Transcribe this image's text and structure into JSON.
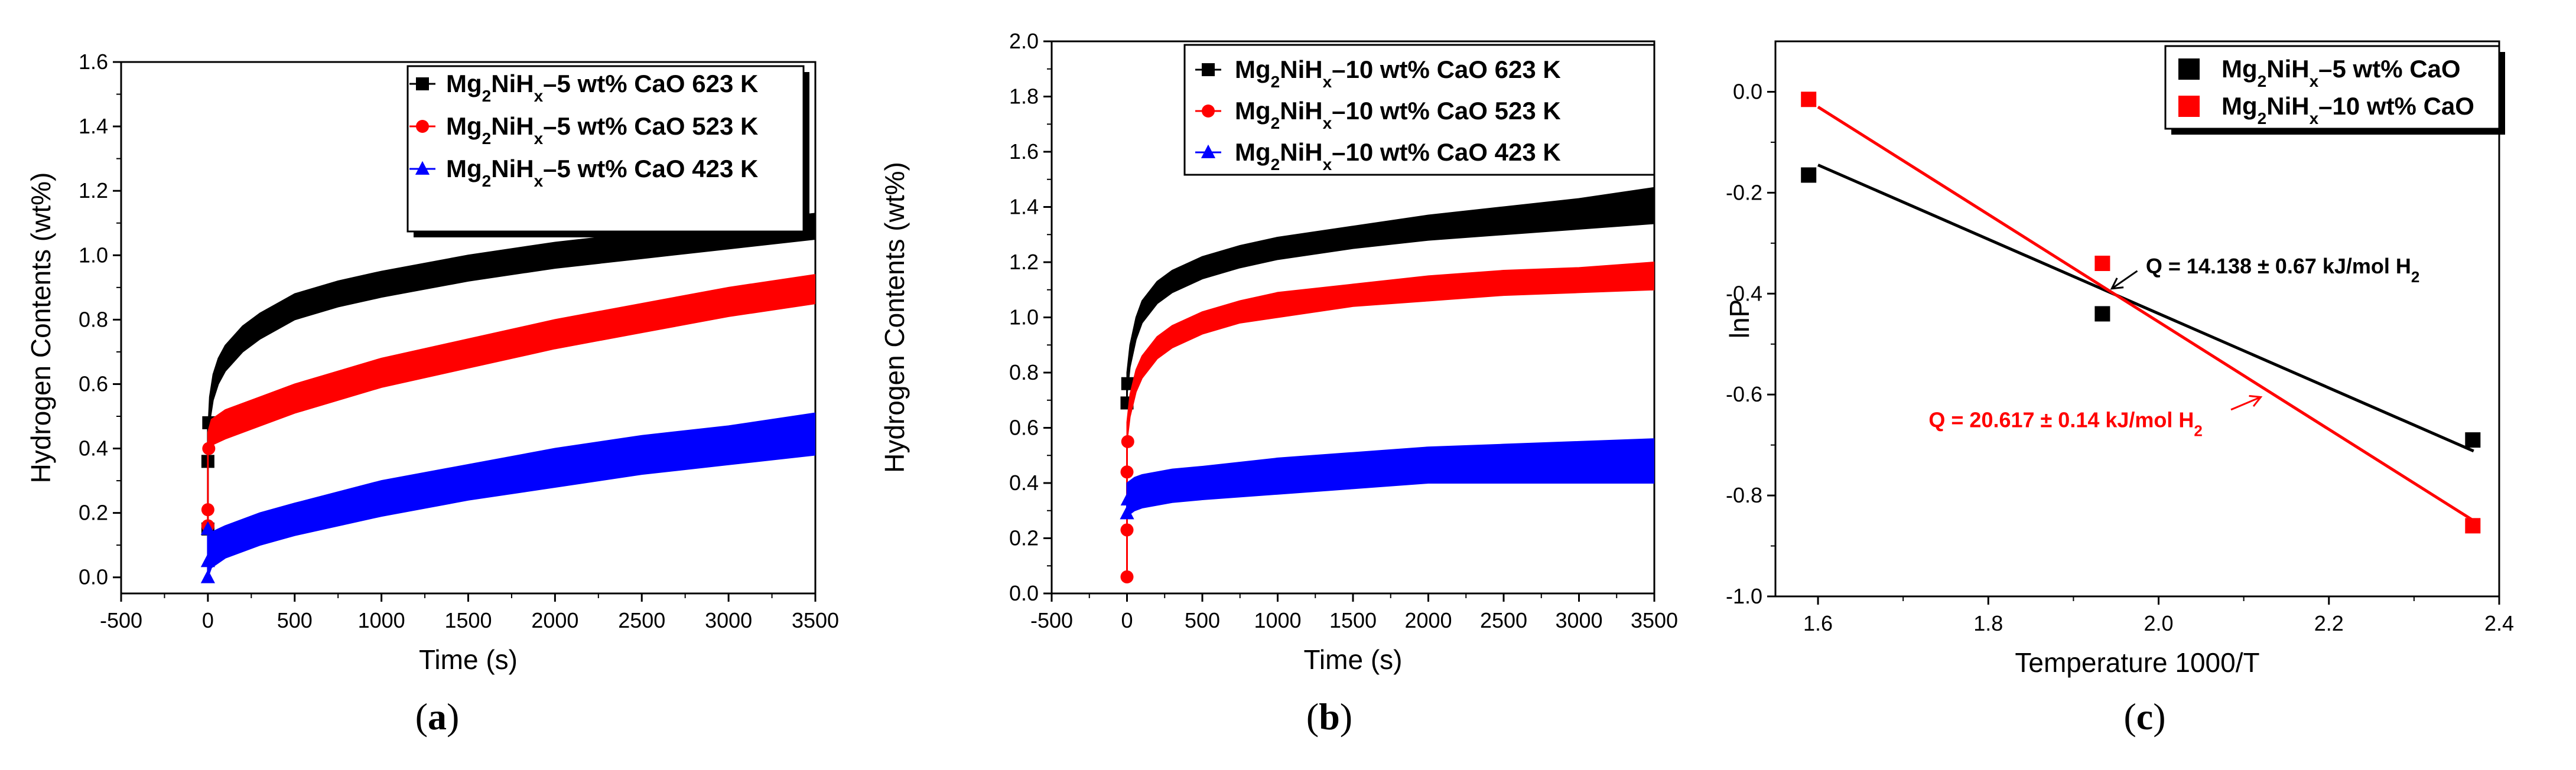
{
  "chart_data": [
    {
      "type": "scatter",
      "panel_label": "a",
      "xlabel": "Time (s)",
      "ylabel": "Hydrogen Contents (wt%)",
      "xlim": [
        -500,
        3500
      ],
      "ylim": [
        -0.05,
        1.6
      ],
      "xticks": [
        -500,
        0,
        500,
        1000,
        1500,
        2000,
        2500,
        3000,
        3500
      ],
      "yticks": [
        0.0,
        0.2,
        0.4,
        0.6,
        0.8,
        1.0,
        1.2,
        1.4,
        1.6
      ],
      "tick_decimals": 1,
      "legend_position": "top-right",
      "series": [
        {
          "name": "Mg2NiHx–5 wt% CaO 623 K",
          "label_pre": "Mg",
          "label_sub1": "2",
          "label_mid": "NiH",
          "label_sub2": "x",
          "label_post": "–5 wt% CaO 623 K",
          "color": "#000000",
          "marker": "square",
          "start_points": [
            [
              0,
              0.15
            ],
            [
              0,
              0.36
            ],
            [
              5,
              0.48
            ]
          ],
          "band_x": [
            0,
            10,
            30,
            60,
            100,
            200,
            300,
            500,
            750,
            1000,
            1500,
            2000,
            2500,
            3000,
            3500
          ],
          "band_low": [
            0.38,
            0.48,
            0.55,
            0.6,
            0.64,
            0.7,
            0.74,
            0.8,
            0.84,
            0.87,
            0.92,
            0.96,
            0.99,
            1.02,
            1.05
          ],
          "band_high": [
            0.45,
            0.56,
            0.63,
            0.68,
            0.72,
            0.78,
            0.82,
            0.88,
            0.92,
            0.95,
            1.0,
            1.04,
            1.07,
            1.1,
            1.13
          ]
        },
        {
          "name": "Mg2NiHx–5 wt% CaO 523 K",
          "label_pre": "Mg",
          "label_sub1": "2",
          "label_mid": "NiH",
          "label_sub2": "x",
          "label_post": "–5 wt% CaO 523 K",
          "color": "#ff0000",
          "marker": "circle",
          "start_points": [
            [
              0,
              0.16
            ],
            [
              0,
              0.21
            ],
            [
              5,
              0.4
            ]
          ],
          "band_x": [
            0,
            20,
            100,
            300,
            500,
            1000,
            1500,
            2000,
            2500,
            3000,
            3500
          ],
          "band_low": [
            0.38,
            0.41,
            0.43,
            0.47,
            0.51,
            0.59,
            0.65,
            0.71,
            0.76,
            0.81,
            0.85
          ],
          "band_high": [
            0.45,
            0.49,
            0.52,
            0.56,
            0.6,
            0.68,
            0.74,
            0.8,
            0.85,
            0.9,
            0.94
          ]
        },
        {
          "name": "Mg2NiHx–5 wt% CaO 423 K",
          "label_pre": "Mg",
          "label_sub1": "2",
          "label_mid": "NiH",
          "label_sub2": "x",
          "label_post": "–5 wt% CaO 423 K",
          "color": "#0000ff",
          "marker": "triangle",
          "start_points": [
            [
              0,
              0.0
            ],
            [
              0,
              0.05
            ],
            [
              0,
              0.15
            ]
          ],
          "band_x": [
            0,
            20,
            100,
            300,
            500,
            1000,
            1500,
            2000,
            2500,
            3000,
            3500
          ],
          "band_low": [
            0.0,
            0.03,
            0.06,
            0.1,
            0.13,
            0.19,
            0.24,
            0.28,
            0.32,
            0.35,
            0.38
          ],
          "band_high": [
            0.12,
            0.14,
            0.16,
            0.2,
            0.23,
            0.3,
            0.35,
            0.4,
            0.44,
            0.47,
            0.51
          ]
        }
      ]
    },
    {
      "type": "scatter",
      "panel_label": "b",
      "xlabel": "Time (s)",
      "ylabel": "Hydrogen Contents (wt%)",
      "xlim": [
        -500,
        3500
      ],
      "ylim": [
        0.0,
        2.0
      ],
      "xticks": [
        -500,
        0,
        500,
        1000,
        1500,
        2000,
        2500,
        3000,
        3500
      ],
      "yticks": [
        0.0,
        0.2,
        0.4,
        0.6,
        0.8,
        1.0,
        1.2,
        1.4,
        1.6,
        1.8,
        2.0
      ],
      "tick_decimals": 1,
      "legend_position": "top-right",
      "series": [
        {
          "name": "Mg2NiHx–10 wt% CaO 623 K",
          "label_pre": "Mg",
          "label_sub1": "2",
          "label_mid": "NiH",
          "label_sub2": "x",
          "label_post": "–10 wt% CaO 623 K",
          "color": "#000000",
          "marker": "square",
          "start_points": [
            [
              0,
              0.69
            ],
            [
              5,
              0.76
            ]
          ],
          "band_x": [
            0,
            20,
            60,
            100,
            200,
            300,
            500,
            750,
            1000,
            1500,
            2000,
            2500,
            3000,
            3500
          ],
          "band_low": [
            0.72,
            0.82,
            0.92,
            0.98,
            1.05,
            1.09,
            1.14,
            1.18,
            1.21,
            1.25,
            1.28,
            1.3,
            1.32,
            1.34
          ],
          "band_high": [
            0.8,
            0.9,
            1.0,
            1.06,
            1.13,
            1.17,
            1.22,
            1.26,
            1.29,
            1.33,
            1.37,
            1.4,
            1.43,
            1.47
          ]
        },
        {
          "name": "Mg2NiHx–10 wt% CaO 523 K",
          "label_pre": "Mg",
          "label_sub1": "2",
          "label_mid": "NiH",
          "label_sub2": "x",
          "label_post": "–10 wt% CaO 523 K",
          "color": "#ff0000",
          "marker": "circle",
          "start_points": [
            [
              0,
              0.06
            ],
            [
              0,
              0.23
            ],
            [
              0,
              0.44
            ],
            [
              5,
              0.55
            ]
          ],
          "band_x": [
            0,
            20,
            60,
            100,
            200,
            300,
            500,
            750,
            1000,
            1500,
            2000,
            2500,
            3000,
            3500
          ],
          "band_low": [
            0.55,
            0.64,
            0.73,
            0.78,
            0.85,
            0.89,
            0.94,
            0.98,
            1.0,
            1.04,
            1.06,
            1.08,
            1.09,
            1.1
          ],
          "band_high": [
            0.62,
            0.72,
            0.81,
            0.86,
            0.93,
            0.97,
            1.02,
            1.06,
            1.09,
            1.12,
            1.15,
            1.17,
            1.18,
            1.2
          ]
        },
        {
          "name": "Mg2NiHx–10 wt% CaO 423 K",
          "label_pre": "Mg",
          "label_sub1": "2",
          "label_mid": "NiH",
          "label_sub2": "x",
          "label_post": "–10 wt% CaO 423 K",
          "color": "#0000ff",
          "marker": "triangle",
          "start_points": [
            [
              0,
              0.29
            ],
            [
              5,
              0.34
            ]
          ],
          "band_x": [
            0,
            50,
            100,
            300,
            500,
            1000,
            1500,
            2000,
            2500,
            3000,
            3500
          ],
          "band_low": [
            0.28,
            0.3,
            0.31,
            0.33,
            0.34,
            0.36,
            0.38,
            0.4,
            0.4,
            0.4,
            0.4
          ],
          "band_high": [
            0.4,
            0.42,
            0.43,
            0.45,
            0.46,
            0.49,
            0.51,
            0.53,
            0.54,
            0.55,
            0.56
          ]
        }
      ]
    },
    {
      "type": "scatter",
      "panel_label": "c",
      "xlabel": "Temperature 1000/T",
      "ylabel": "lnP",
      "xlim": [
        1.55,
        2.4
      ],
      "ylim": [
        -1.0,
        0.1
      ],
      "xticks": [
        1.6,
        1.8,
        2.0,
        2.2,
        2.4
      ],
      "yticks": [
        -1.0,
        -0.8,
        -0.6,
        -0.4,
        -0.2,
        0.0
      ],
      "tick_decimals": 1,
      "legend_position": "top-right",
      "series": [
        {
          "name": "Mg2NiHx–5 wt% CaO",
          "label_pre": "Mg",
          "label_sub1": "2",
          "label_mid": "NiH",
          "label_sub2": "x",
          "label_post": "–5 wt% CaO",
          "color": "#000000",
          "marker": "square",
          "x": [
            1.589,
            1.934,
            2.369
          ],
          "y": [
            -0.165,
            -0.44,
            -0.69
          ],
          "fit": {
            "x": [
              1.6,
              2.37
            ],
            "y": [
              -0.145,
              -0.712
            ]
          }
        },
        {
          "name": "Mg2NiHx–10 wt% CaO",
          "label_pre": "Mg",
          "label_sub1": "2",
          "label_mid": "NiH",
          "label_sub2": "x",
          "label_post": "–10 wt% CaO",
          "color": "#ff0000",
          "marker": "square",
          "x": [
            1.589,
            1.934,
            2.369
          ],
          "y": [
            -0.015,
            -0.34,
            -0.86
          ],
          "fit": {
            "x": [
              1.6,
              2.37
            ],
            "y": [
              -0.03,
              -0.85
            ]
          }
        }
      ],
      "annotations": [
        {
          "text_pre": "Q = 14.138 ± 0.67 kJ/mol H",
          "text_sub": "2",
          "color": "#000000",
          "x": 1.985,
          "y": -0.36,
          "arrow_from": [
            1.975,
            -0.355
          ],
          "arrow_to": [
            1.945,
            -0.39
          ]
        },
        {
          "text_pre": "Q = 20.617 ± 0.14 kJ/mol H",
          "text_sub": "2",
          "color": "#ff0000",
          "x": 1.73,
          "y": -0.665,
          "arrow_from": [
            2.085,
            -0.63
          ],
          "arrow_to": [
            2.12,
            -0.605
          ]
        }
      ]
    }
  ]
}
